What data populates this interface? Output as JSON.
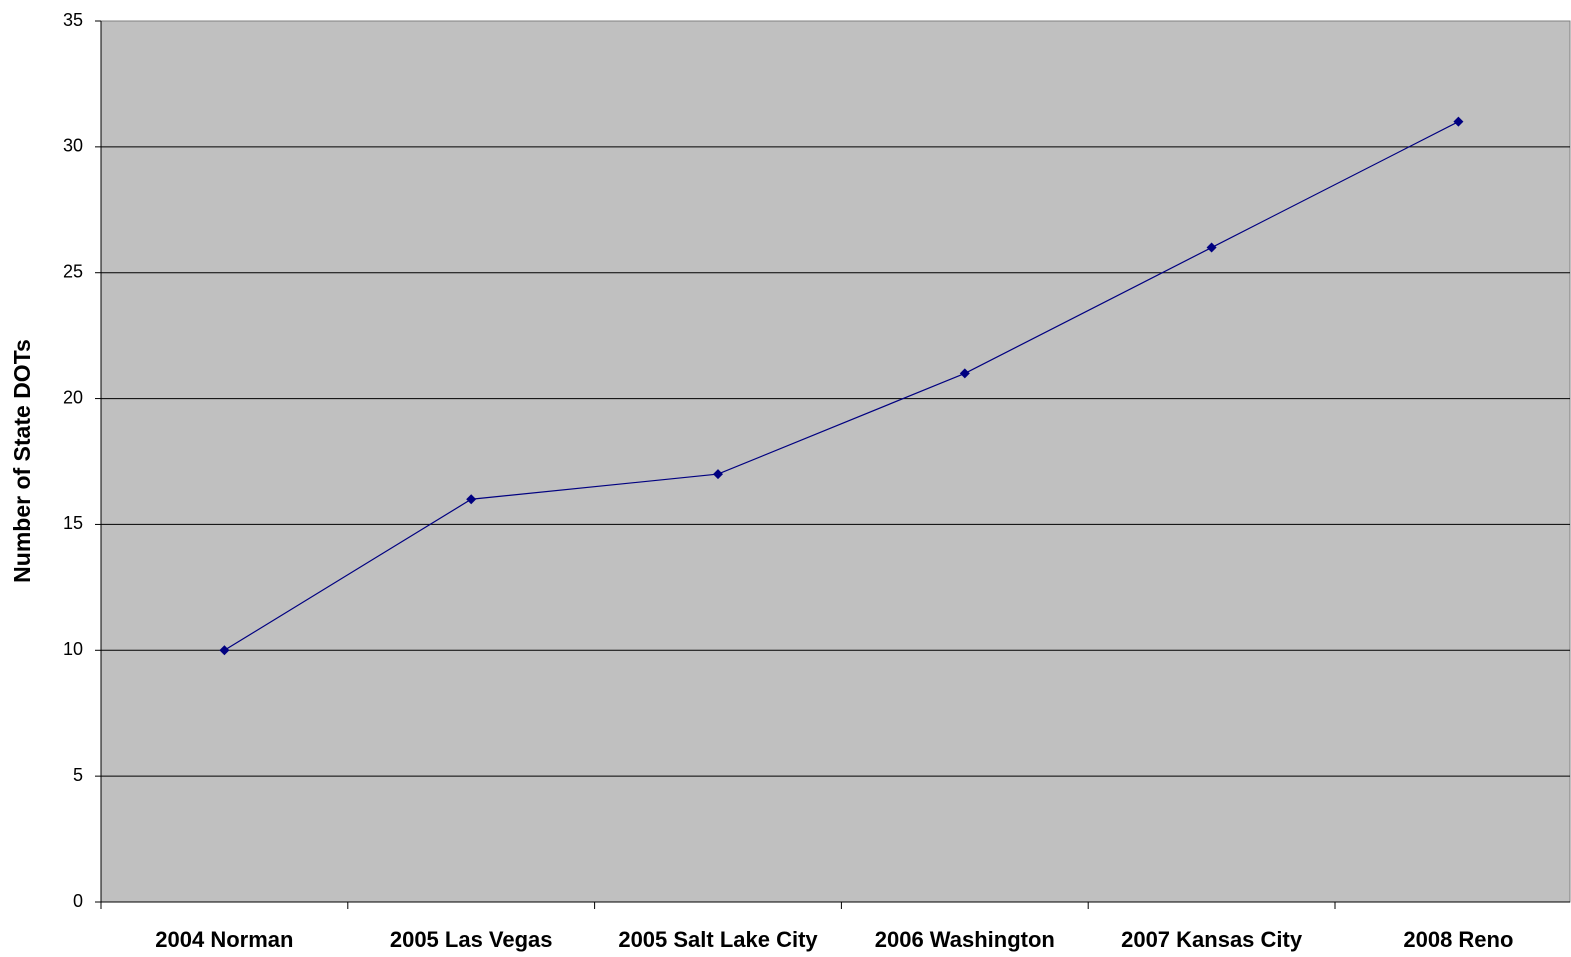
{
  "chart_data": {
    "type": "line",
    "ylabel": "Number of State DOTs",
    "categories": [
      "2004 Norman",
      "2005 Las Vegas",
      "2005 Salt Lake City",
      "2006 Washington",
      "2007 Kansas City",
      "2008 Reno"
    ],
    "series": [
      {
        "name": "State DOTs",
        "color": "#000080",
        "values": [
          10,
          16,
          17,
          21,
          26,
          31
        ]
      }
    ],
    "ylim": [
      0,
      35
    ],
    "yticks": [
      0,
      5,
      10,
      15,
      20,
      25,
      30,
      35
    ],
    "grid": true,
    "plot_background": "#c0c0c0"
  }
}
